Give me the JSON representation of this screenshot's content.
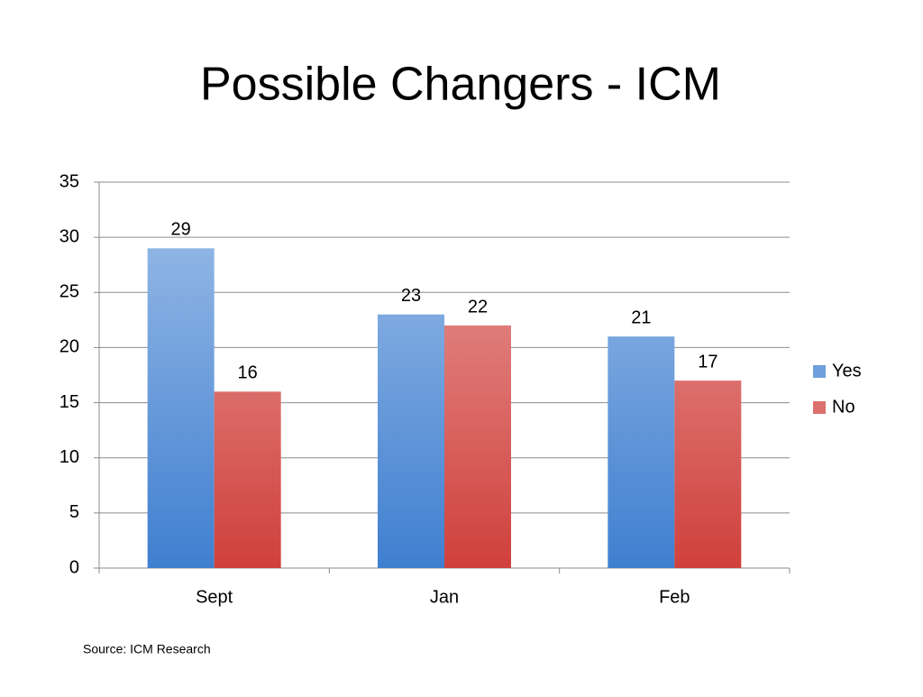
{
  "chart_data": {
    "type": "bar",
    "title": "Possible Changers - ICM",
    "categories": [
      "Sept",
      "Jan",
      "Feb"
    ],
    "series": [
      {
        "name": "Yes",
        "color": "#3f7fd0",
        "values": [
          29,
          23,
          21
        ]
      },
      {
        "name": "No",
        "color": "#d0403c",
        "values": [
          16,
          22,
          17
        ]
      }
    ],
    "ylim": [
      0,
      35
    ],
    "yticks": [
      0,
      5,
      10,
      15,
      20,
      25,
      30,
      35
    ],
    "grid": true,
    "legend": "right",
    "source": "Source: ICM Research"
  }
}
